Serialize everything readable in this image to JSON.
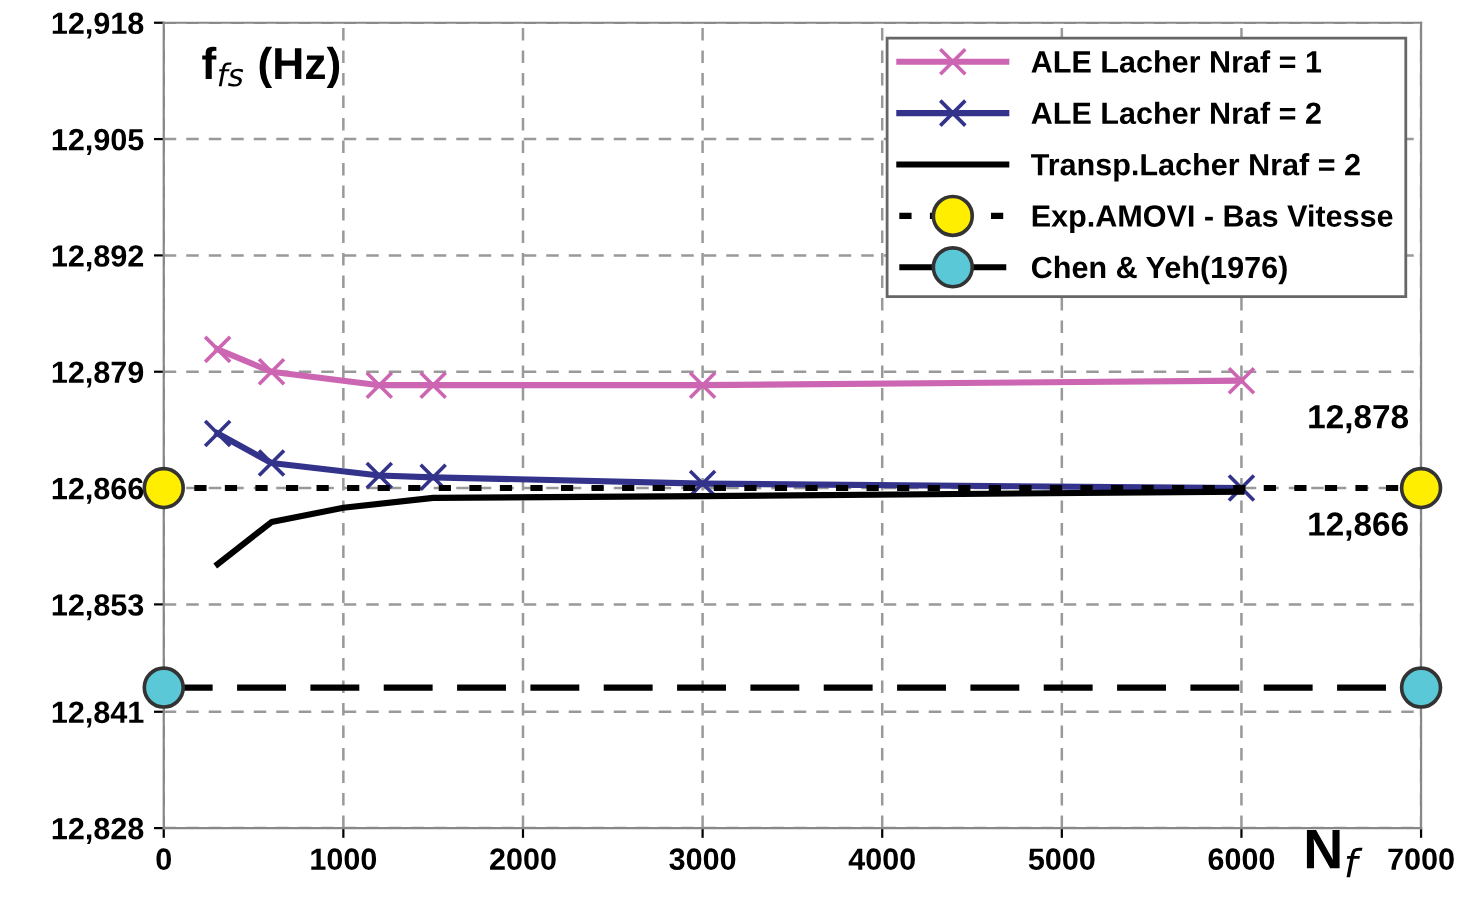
{
  "chart_data": {
    "type": "line",
    "ylabel": "f$_{fs}$ (Hz)",
    "xlabel": "N$_{f}$",
    "xlim": [
      0,
      7000
    ],
    "xticks": [
      0,
      1000,
      2000,
      3000,
      4000,
      5000,
      6000,
      7000
    ],
    "ylim": [
      12828,
      12918
    ],
    "yticks": [
      {
        "value": 12828,
        "label": "12,828"
      },
      {
        "value": 12841,
        "label": "12,841"
      },
      {
        "value": 12853,
        "label": "12,853"
      },
      {
        "value": 12866,
        "label": "12,866"
      },
      {
        "value": 12879,
        "label": "12,879"
      },
      {
        "value": 12892,
        "label": "12,892"
      },
      {
        "value": 12905,
        "label": "12,905"
      },
      {
        "value": 12918,
        "label": "12,918"
      }
    ],
    "grid": true,
    "legend": "top right",
    "series": [
      {
        "name": "ALE Lacher Nraf = 1",
        "color": "#cc66b3",
        "marker": "cross",
        "line_style": "solid",
        "x": [
          300,
          600,
          1200,
          1500,
          3000,
          6000
        ],
        "values": [
          12881.5,
          12879,
          12877.5,
          12877.5,
          12877.5,
          12878
        ]
      },
      {
        "name": "ALE Lacher Nraf = 2",
        "color": "#33338c",
        "marker": "cross",
        "line_style": "solid",
        "x": [
          300,
          600,
          1200,
          1500,
          3000,
          6000
        ],
        "values": [
          12872.1,
          12868.8,
          12867.4,
          12867.2,
          12866.5,
          12866
        ]
      },
      {
        "name": "Transp.Lacher Nraf = 2",
        "color": "#000000",
        "marker": "none",
        "line_style": "solid",
        "x": [
          300,
          600,
          1000,
          1500,
          3000,
          6000
        ],
        "values": [
          12857.5,
          12862.2,
          12863.8,
          12864.9,
          12865.1,
          12865.6
        ]
      },
      {
        "name": "Exp.AMOVI - Bas Vitesse",
        "color": "#000000",
        "colors": [
          "#ffee00",
          "#ffee00"
        ],
        "marker": "circle",
        "line_style": "dotted",
        "x": [
          0,
          7000
        ],
        "values": [
          12866,
          12866
        ]
      },
      {
        "name": "Chen & Yeh(1976)",
        "color": "#000000",
        "colors": [
          "#5bc8d8",
          "#5bc8d8"
        ],
        "marker": "circle",
        "line_style": "dashed",
        "x": [
          0,
          7000
        ],
        "values": [
          12843.7,
          12843.7
        ]
      }
    ],
    "annotations": [
      {
        "text": "12,878",
        "x": 6000,
        "y": 12878
      },
      {
        "text": "12,866",
        "x": 6000,
        "y": 12866
      }
    ]
  }
}
